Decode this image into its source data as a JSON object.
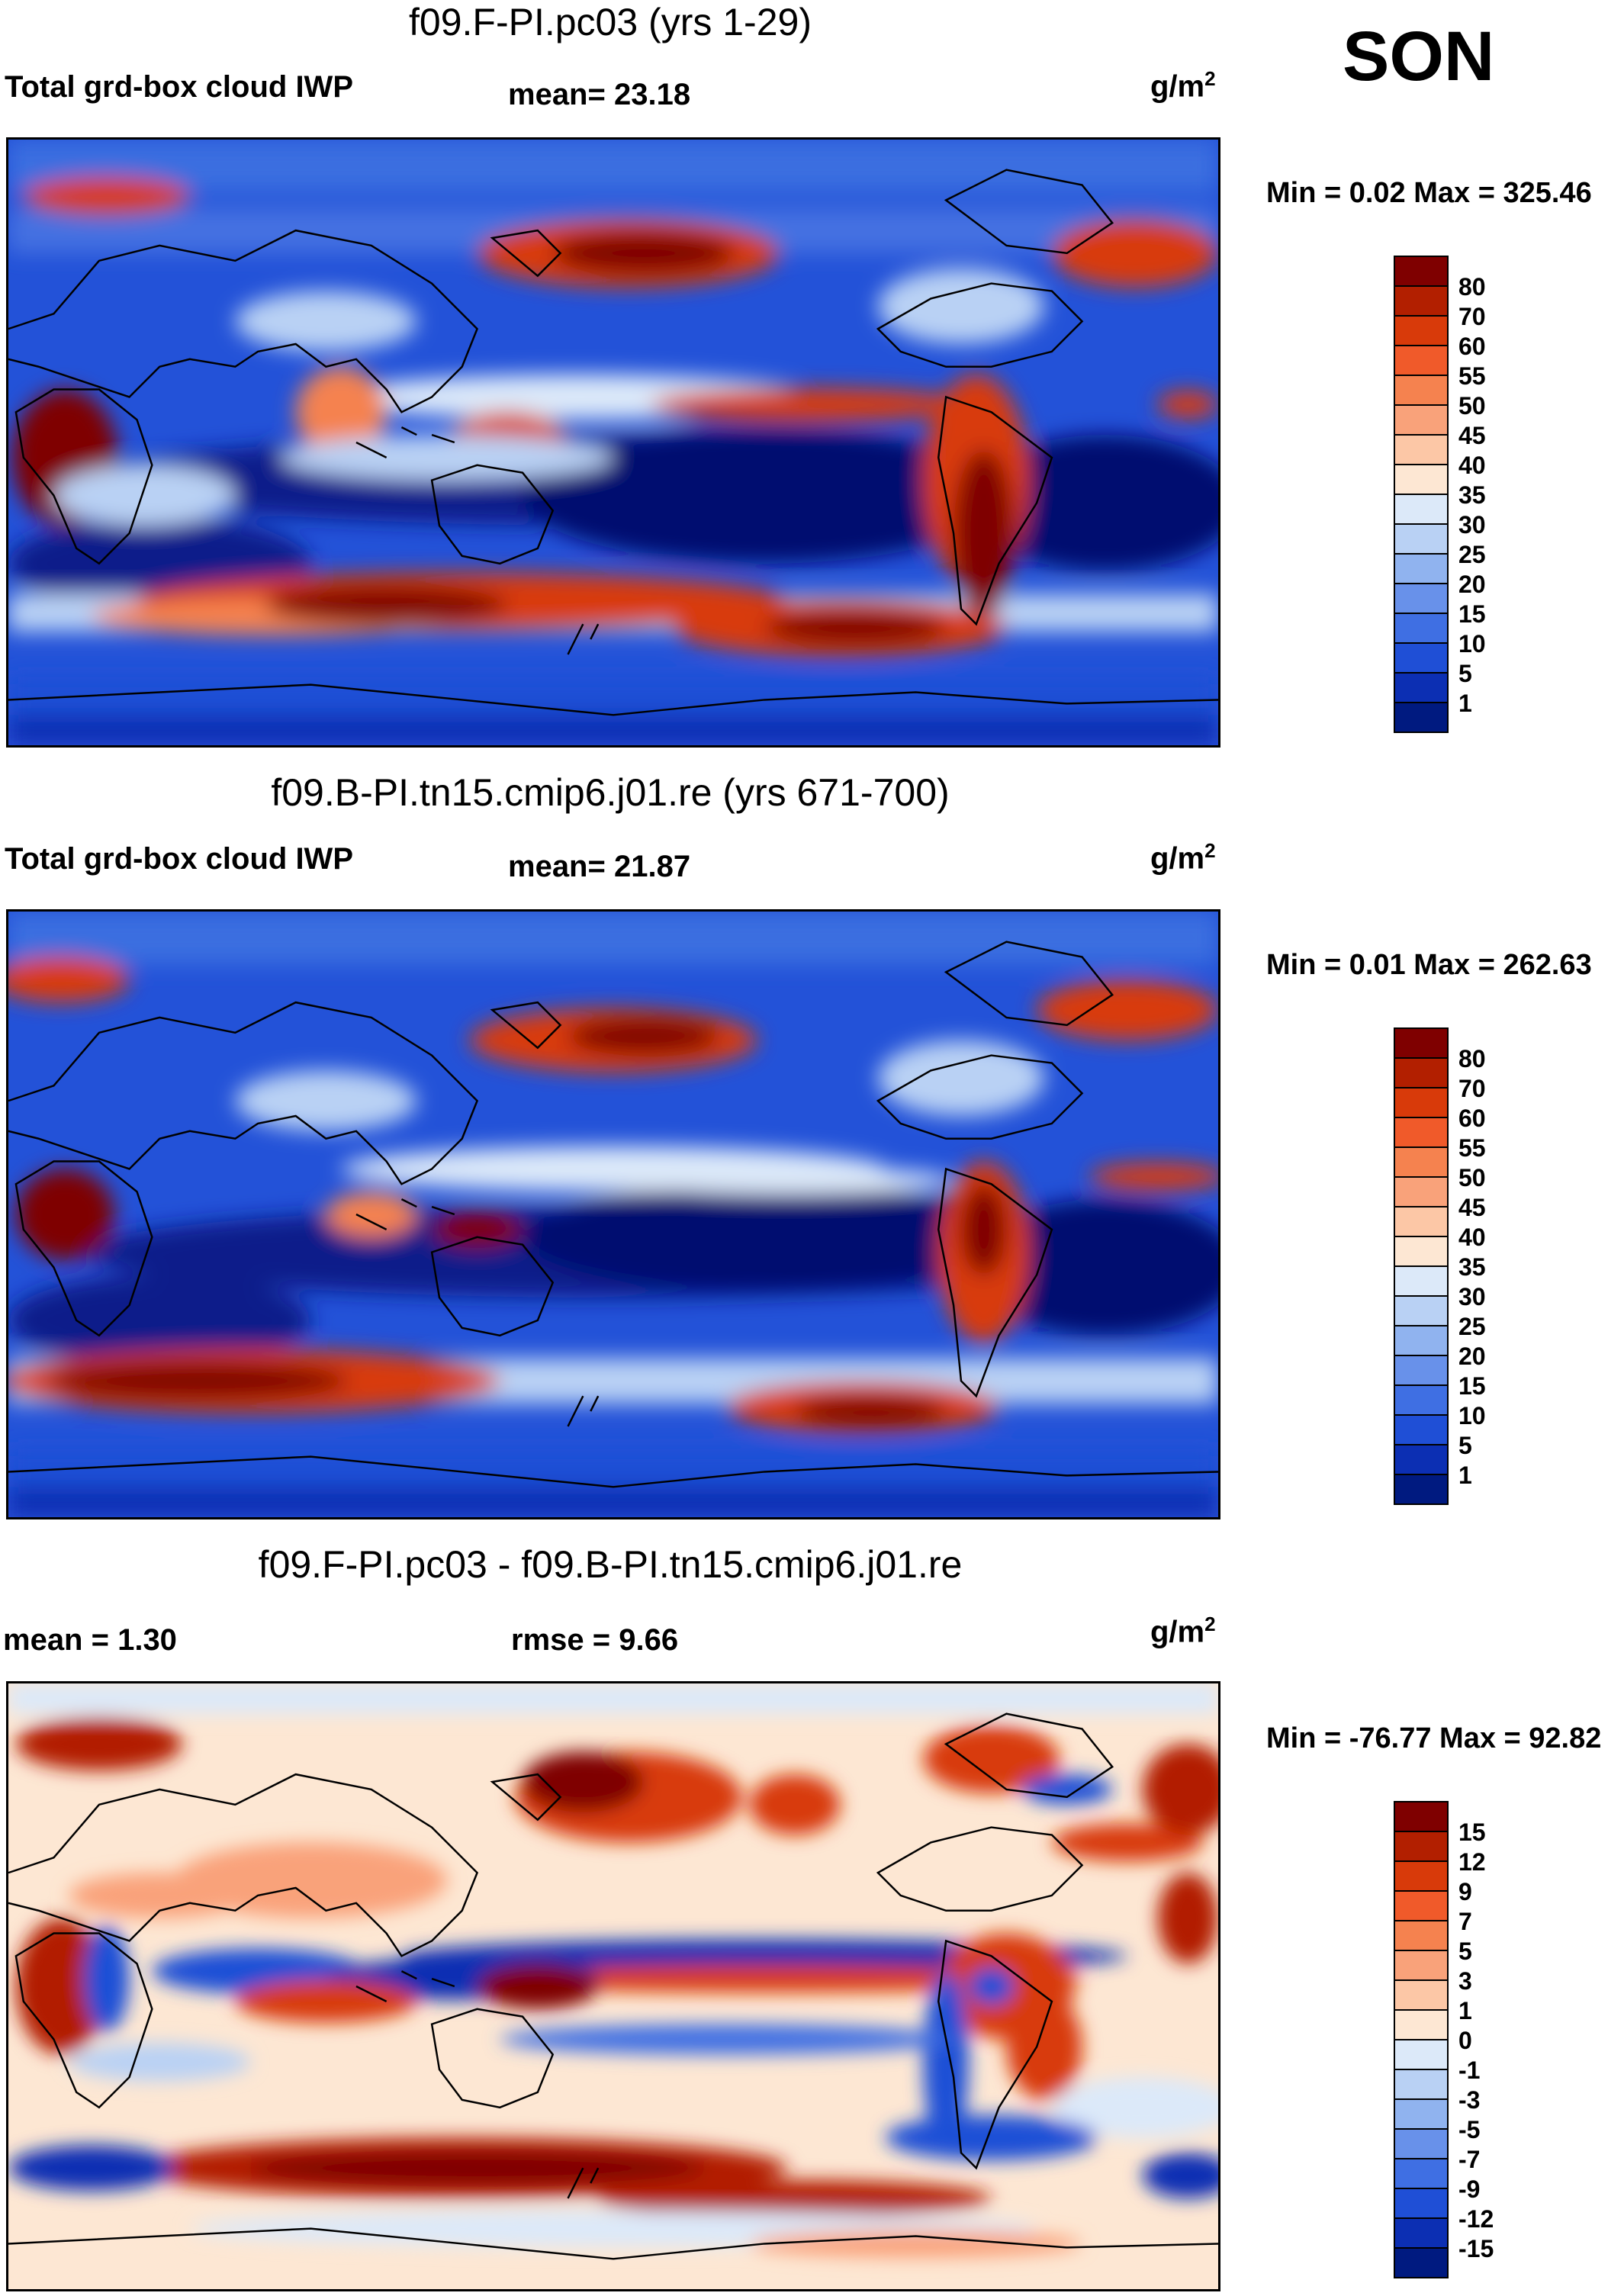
{
  "season": "SON",
  "units_base": "g/m",
  "units_exp": "2",
  "panels": [
    {
      "title": "f09.F-PI.pc03 (yrs 1-29)",
      "left_label": "Total grd-box cloud IWP",
      "center_label": "mean=  23.18",
      "minmax": "Min =    0.02 Max = 325.46"
    },
    {
      "title": "f09.B-PI.tn15.cmip6.j01.re (yrs 671-700)",
      "left_label": "Total grd-box cloud IWP",
      "center_label": "mean=  21.87",
      "minmax": "Min =    0.01 Max = 262.63"
    },
    {
      "title": "f09.F-PI.pc03 - f09.B-PI.tn15.cmip6.j01.re",
      "left_label": "mean =    1.30",
      "center_label": "rmse =    9.66",
      "minmax": "Min = -76.77 Max =  92.82"
    }
  ],
  "colorbars": {
    "absolute": {
      "labels": [
        "80",
        "70",
        "60",
        "55",
        "50",
        "45",
        "40",
        "35",
        "30",
        "25",
        "20",
        "15",
        "10",
        "5",
        "1"
      ],
      "colors": [
        "#7f0000",
        "#b21f00",
        "#d83a0a",
        "#f05a2a",
        "#f5824f",
        "#f9a27a",
        "#fcc7a6",
        "#fde7d3",
        "#dce9f9",
        "#b9d1f4",
        "#90b3ef",
        "#6891ea",
        "#3f6fe3",
        "#1f4fd6",
        "#0c2fb3",
        "#001a80"
      ]
    },
    "difference": {
      "labels": [
        "15",
        "12",
        "9",
        "7",
        "5",
        "3",
        "1",
        "0",
        "-1",
        "-3",
        "-5",
        "-7",
        "-9",
        "-12",
        "-15"
      ],
      "colors": [
        "#7f0000",
        "#b21f00",
        "#d83a0a",
        "#f05a2a",
        "#f5824f",
        "#f9a27a",
        "#fcc7a6",
        "#fde7d3",
        "#dce9f9",
        "#b9d1f4",
        "#90b3ef",
        "#6891ea",
        "#3f6fe3",
        "#1f4fd6",
        "#0c2fb3",
        "#001a80"
      ]
    }
  },
  "chart_data": [
    {
      "type": "heatmap",
      "title": "f09.F-PI.pc03 (yrs 1-29)",
      "variable": "Total grd-box cloud IWP",
      "units": "g/m2",
      "mean": 23.18,
      "min": 0.02,
      "max": 325.46,
      "contour_levels": [
        1,
        5,
        10,
        15,
        20,
        25,
        30,
        35,
        40,
        45,
        50,
        55,
        60,
        70,
        80
      ]
    },
    {
      "type": "heatmap",
      "title": "f09.B-PI.tn15.cmip6.j01.re (yrs 671-700)",
      "variable": "Total grd-box cloud IWP",
      "units": "g/m2",
      "mean": 21.87,
      "min": 0.01,
      "max": 262.63,
      "contour_levels": [
        1,
        5,
        10,
        15,
        20,
        25,
        30,
        35,
        40,
        45,
        50,
        55,
        60,
        70,
        80
      ]
    },
    {
      "type": "heatmap",
      "title": "f09.F-PI.pc03 - f09.B-PI.tn15.cmip6.j01.re",
      "units": "g/m2",
      "mean": 1.3,
      "rmse": 9.66,
      "min": -76.77,
      "max": 92.82,
      "contour_levels": [
        -15,
        -12,
        -9,
        -7,
        -5,
        -3,
        -1,
        0,
        1,
        3,
        5,
        7,
        9,
        12,
        15
      ]
    }
  ]
}
